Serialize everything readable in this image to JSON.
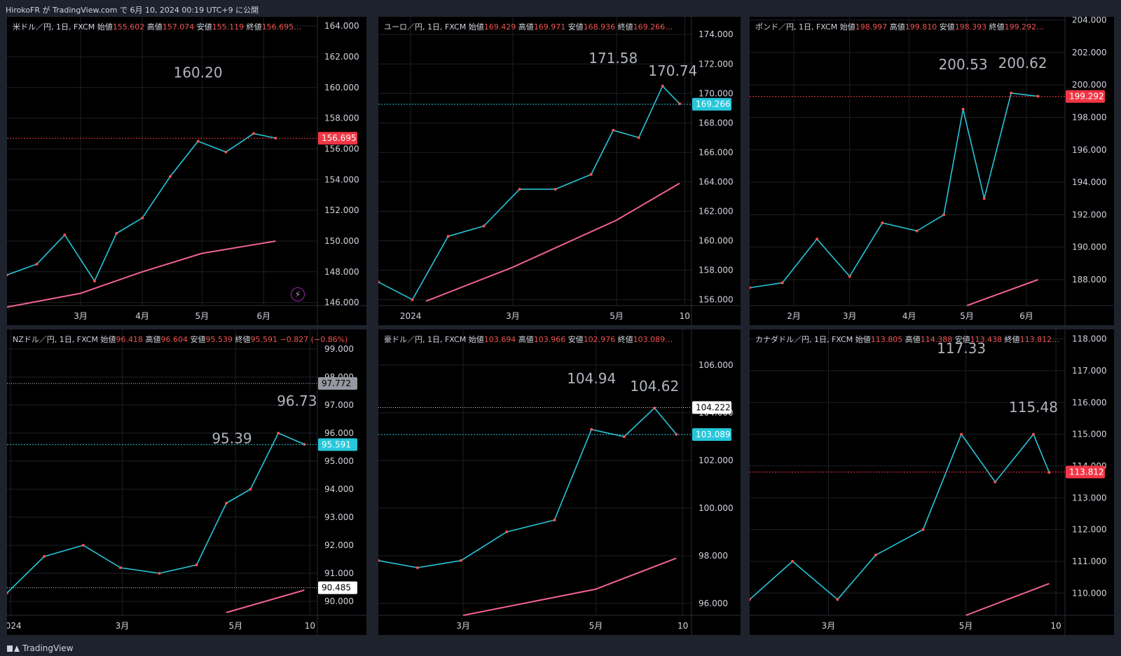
{
  "header": {
    "publish_text": "HirokoFR が TradingView.com で 6月 10, 2024 00:19 UTC+9 に公開"
  },
  "footer": {
    "brand": "TradingView"
  },
  "panels": [
    {
      "legend": "米ドル／円, 1日, FXCM",
      "ohlc": {
        "open_label": "始値",
        "open": "155.602",
        "high_label": "高値",
        "high": "157.074",
        "low_label": "安値",
        "low": "155.119",
        "close_label": "終値",
        "close": "156.695…"
      },
      "price_badge": "156.695",
      "price_badge_color": "#f23645",
      "annotations": [
        {
          "text": "160.20",
          "value": 160.2,
          "date": "2024-04-29"
        }
      ],
      "chart_data": {
        "type": "line",
        "y_ticks": [
          "164.000",
          "162.000",
          "160.000",
          "158.000",
          "156.000",
          "154.000",
          "152.000",
          "150.000",
          "148.000",
          "146.000"
        ],
        "ylim": [
          145.8,
          164.6
        ],
        "x_ticks": [
          "3月",
          "4月",
          "5月",
          "6月"
        ],
        "xlim": [
          "2024-01-24",
          "2024-06-28"
        ],
        "x_tick_dates": [
          "2024-03-01",
          "2024-04-01",
          "2024-05-01",
          "2024-06-01"
        ],
        "series": [
          {
            "role": "price",
            "x": [
              "2024-01-24",
              "2024-02-08",
              "2024-02-22",
              "2024-03-08",
              "2024-03-19",
              "2024-04-01",
              "2024-04-15",
              "2024-04-29",
              "2024-05-13",
              "2024-05-27",
              "2024-06-07"
            ],
            "values": [
              147.8,
              148.5,
              150.4,
              147.4,
              150.5,
              151.5,
              154.2,
              156.5,
              155.8,
              157.0,
              156.7
            ]
          },
          {
            "role": "ma",
            "x": [
              "2024-01-24",
              "2024-03-01",
              "2024-04-01",
              "2024-05-01",
              "2024-06-07"
            ],
            "values": [
              145.7,
              146.6,
              148.0,
              149.2,
              150.0
            ]
          }
        ],
        "price_line": 156.695
      }
    },
    {
      "legend": "ユーロ／円, 1日, FXCM",
      "ohlc": {
        "open_label": "始値",
        "open": "169.429",
        "high_label": "高値",
        "high": "169.971",
        "low_label": "安値",
        "low": "168.936",
        "close_label": "終値",
        "close": "169.266…"
      },
      "price_badge": "169.266",
      "price_badge_color": "#26c6da",
      "annotations": [
        {
          "text": "171.58",
          "value": 171.58,
          "date": "2024-04-29"
        },
        {
          "text": "170.74",
          "value": 170.74,
          "date": "2024-06-03"
        }
      ],
      "chart_data": {
        "type": "line",
        "y_ticks": [
          "174.000",
          "172.000",
          "170.000",
          "168.000",
          "166.000",
          "164.000",
          "162.000",
          "160.000",
          "158.000",
          "156.000"
        ],
        "ylim": [
          155.6,
          175.2
        ],
        "x_ticks": [
          "2024",
          "3月",
          "5月",
          "10"
        ],
        "xlim": [
          "2023-12-13",
          "2024-06-14"
        ],
        "x_tick_dates": [
          "2024-01-01",
          "2024-03-01",
          "2024-05-01",
          "2024-06-10"
        ],
        "series": [
          {
            "role": "price",
            "x": [
              "2023-12-13",
              "2024-01-02",
              "2024-01-23",
              "2024-02-13",
              "2024-03-05",
              "2024-03-26",
              "2024-04-16",
              "2024-04-29",
              "2024-05-14",
              "2024-05-28",
              "2024-06-07"
            ],
            "values": [
              157.2,
              156.0,
              160.3,
              161.0,
              163.5,
              163.5,
              164.5,
              167.5,
              167.0,
              170.5,
              169.3
            ]
          },
          {
            "role": "ma",
            "x": [
              "2024-01-10",
              "2024-03-01",
              "2024-05-01",
              "2024-06-07"
            ],
            "values": [
              155.9,
              158.2,
              161.4,
              163.9
            ]
          }
        ],
        "price_line": 169.266
      }
    },
    {
      "legend": "ポンド／円, 1日, FXCM",
      "ohlc": {
        "open_label": "始値",
        "open": "198.997",
        "high_label": "高値",
        "high": "199.810",
        "low_label": "安値",
        "low": "198.393",
        "close_label": "終値",
        "close": "199.292…"
      },
      "price_badge": "199.292",
      "price_badge_color": "#f23645",
      "annotations": [
        {
          "text": "200.53",
          "value": 200.53,
          "date": "2024-04-29"
        },
        {
          "text": "200.62",
          "value": 200.62,
          "date": "2024-05-30"
        }
      ],
      "chart_data": {
        "type": "line",
        "y_ticks": [
          "204.000",
          "202.000",
          "200.000",
          "198.000",
          "196.000",
          "194.000",
          "192.000",
          "190.000",
          "188.000"
        ],
        "ylim": [
          186.4,
          204.2
        ],
        "x_ticks": [
          "2月",
          "3月",
          "4月",
          "5月",
          "6月"
        ],
        "xlim": [
          "2024-01-09",
          "2024-06-21"
        ],
        "x_tick_dates": [
          "2024-02-01",
          "2024-03-01",
          "2024-04-01",
          "2024-05-01",
          "2024-06-01"
        ],
        "series": [
          {
            "role": "price",
            "x": [
              "2024-01-09",
              "2024-01-26",
              "2024-02-13",
              "2024-03-01",
              "2024-03-18",
              "2024-04-05",
              "2024-04-19",
              "2024-04-29",
              "2024-05-10",
              "2024-05-24",
              "2024-06-07"
            ],
            "values": [
              187.5,
              187.8,
              190.5,
              188.2,
              191.5,
              191.0,
              192.0,
              198.5,
              193.0,
              199.5,
              199.3
            ]
          },
          {
            "role": "ma",
            "x": [
              "2024-05-01",
              "2024-06-07"
            ],
            "values": [
              186.4,
              188.0
            ]
          }
        ],
        "price_line": 199.292
      }
    },
    {
      "legend": "NZドル／円, 1日, FXCM",
      "ohlc": {
        "open_label": "始値",
        "open": "96.418",
        "high_label": "高値",
        "high": "96.604",
        "low_label": "安値",
        "low": "95.539",
        "close_label": "終値",
        "close": "95.591",
        "change": "−0.827 (−0.86%)"
      },
      "price_badge": "95.591",
      "price_badge_color": "#26c6da",
      "level_badges": [
        {
          "text": "97.772",
          "value": 97.772,
          "color": "#9598a1"
        },
        {
          "text": "90.485",
          "value": 90.485,
          "color": "#ffffff"
        }
      ],
      "annotations": [
        {
          "text": "95.39",
          "value": 95.39,
          "date": "2024-04-29"
        },
        {
          "text": "96.73",
          "value": 96.73,
          "date": "2024-06-03"
        }
      ],
      "chart_data": {
        "type": "line",
        "y_ticks": [
          "99.000",
          "98.000",
          "97.000",
          "96.000",
          "95.000",
          "94.000",
          "93.000",
          "92.000",
          "91.000",
          "90.000"
        ],
        "ylim": [
          89.5,
          99.7
        ],
        "x_ticks": [
          "2024",
          "3月",
          "5月",
          "10"
        ],
        "xlim": [
          "2023-12-30",
          "2024-06-14"
        ],
        "x_tick_dates": [
          "2024-01-01",
          "2024-03-01",
          "2024-05-01",
          "2024-06-10"
        ],
        "series": [
          {
            "role": "price",
            "x": [
              "2023-12-30",
              "2024-01-19",
              "2024-02-09",
              "2024-02-29",
              "2024-03-21",
              "2024-04-10",
              "2024-04-26",
              "2024-05-09",
              "2024-05-24",
              "2024-06-07"
            ],
            "values": [
              90.3,
              91.6,
              92.0,
              91.2,
              91.0,
              91.3,
              93.5,
              94.0,
              96.0,
              95.6
            ]
          },
          {
            "role": "ma",
            "x": [
              "2024-04-26",
              "2024-06-07"
            ],
            "values": [
              89.6,
              90.4
            ]
          }
        ],
        "price_line": 95.591
      }
    },
    {
      "legend": "豪ドル／円, 1日, FXCM",
      "ohlc": {
        "open_label": "始値",
        "open": "103.694",
        "high_label": "高値",
        "high": "103.966",
        "low_label": "安値",
        "low": "102.976",
        "close_label": "終値",
        "close": "103.089…"
      },
      "price_badge": "103.089",
      "price_badge_color": "#26c6da",
      "level_badges": [
        {
          "text": "104.222",
          "value": 104.222,
          "color": "#ffffff"
        }
      ],
      "annotations": [
        {
          "text": "104.94",
          "value": 104.94,
          "date": "2024-04-29"
        },
        {
          "text": "104.62",
          "value": 104.62,
          "date": "2024-05-28"
        }
      ],
      "chart_data": {
        "type": "line",
        "y_ticks": [
          "106.000",
          "104.000",
          "102.000",
          "100.000",
          "98.000",
          "96.000"
        ],
        "ylim": [
          95.5,
          107.5
        ],
        "x_ticks": [
          "3月",
          "5月",
          "10"
        ],
        "xlim": [
          "2024-01-22",
          "2024-06-14"
        ],
        "x_tick_dates": [
          "2024-03-01",
          "2024-05-01",
          "2024-06-10"
        ],
        "series": [
          {
            "role": "price",
            "x": [
              "2024-01-22",
              "2024-02-09",
              "2024-02-29",
              "2024-03-21",
              "2024-04-12",
              "2024-04-29",
              "2024-05-14",
              "2024-05-28",
              "2024-06-07"
            ],
            "values": [
              97.8,
              97.5,
              97.8,
              99.0,
              99.5,
              103.3,
              103.0,
              104.2,
              103.1
            ]
          },
          {
            "role": "ma",
            "x": [
              "2024-03-01",
              "2024-05-01",
              "2024-06-07"
            ],
            "values": [
              95.5,
              96.6,
              97.9
            ]
          }
        ],
        "price_line": 103.089
      }
    },
    {
      "legend": "カナダドル／円, 1日, FXCM",
      "ohlc": {
        "open_label": "始値",
        "open": "113.805",
        "high_label": "高値",
        "high": "114.388",
        "low_label": "安値",
        "low": "113.438",
        "close_label": "終値",
        "close": "113.812…"
      },
      "price_badge": "113.812",
      "price_badge_color": "#f23645",
      "annotations": [
        {
          "text": "117.33",
          "value": 117.33,
          "date": "2024-04-29"
        },
        {
          "text": "115.48",
          "value": 115.48,
          "date": "2024-05-31"
        }
      ],
      "chart_data": {
        "type": "line",
        "y_ticks": [
          "118.000",
          "117.000",
          "116.000",
          "115.000",
          "114.000",
          "113.000",
          "112.000",
          "111.000",
          "110.000"
        ],
        "ylim": [
          109.3,
          118.3
        ],
        "x_ticks": [
          "3月",
          "5月",
          "10"
        ],
        "xlim": [
          "2024-01-26",
          "2024-06-14"
        ],
        "x_tick_dates": [
          "2024-03-01",
          "2024-05-01",
          "2024-06-10"
        ],
        "series": [
          {
            "role": "price",
            "x": [
              "2024-01-26",
              "2024-02-14",
              "2024-03-05",
              "2024-03-22",
              "2024-04-12",
              "2024-04-29",
              "2024-05-14",
              "2024-05-31",
              "2024-06-07"
            ],
            "values": [
              109.8,
              111.0,
              109.8,
              111.2,
              112.0,
              115.0,
              113.5,
              115.0,
              113.8
            ]
          },
          {
            "role": "ma",
            "x": [
              "2024-05-01",
              "2024-06-07"
            ],
            "values": [
              109.3,
              110.3
            ]
          }
        ],
        "price_line": 113.812
      }
    }
  ]
}
